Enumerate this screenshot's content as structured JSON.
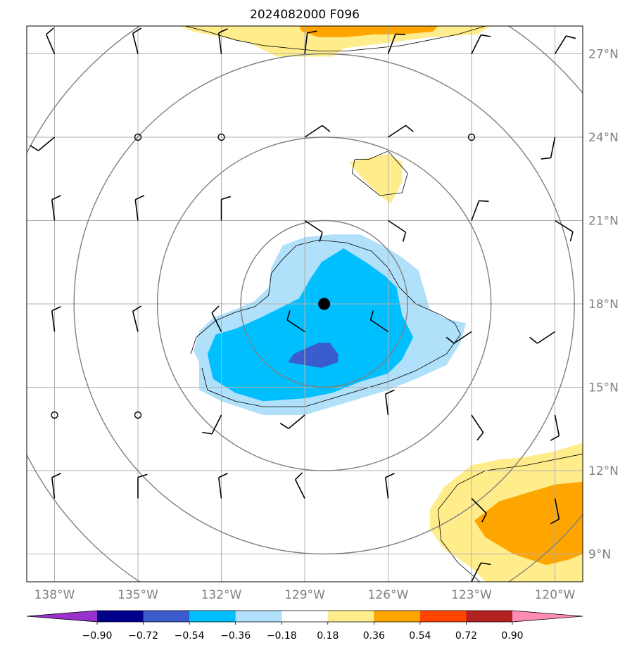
{
  "chart_data": {
    "type": "heatmap",
    "title": "2024082000 F096",
    "xlim": [
      -139.0,
      -119.0
    ],
    "ylim": [
      8.0,
      28.0
    ],
    "lon_ticks": [
      {
        "value": -138,
        "label": "138°W"
      },
      {
        "value": -135,
        "label": "135°W"
      },
      {
        "value": -132,
        "label": "132°W"
      },
      {
        "value": -129,
        "label": "129°W"
      },
      {
        "value": -126,
        "label": "126°W"
      },
      {
        "value": -123,
        "label": "123°W"
      },
      {
        "value": -120,
        "label": "120°W"
      }
    ],
    "lat_ticks": [
      {
        "value": 9,
        "label": "9°N"
      },
      {
        "value": 12,
        "label": "12°N"
      },
      {
        "value": 15,
        "label": "15°N"
      },
      {
        "value": 18,
        "label": "18°N"
      },
      {
        "value": 21,
        "label": "21°N"
      },
      {
        "value": 24,
        "label": "24°N"
      },
      {
        "value": 27,
        "label": "27°N"
      }
    ],
    "grid": true,
    "center": {
      "lon": -128.3,
      "lat": 18.0
    },
    "range_rings_deg": [
      3,
      6,
      9,
      12
    ],
    "colorbar": {
      "levels": [
        -0.9,
        -0.72,
        -0.54,
        -0.36,
        -0.18,
        0.18,
        0.36,
        0.54,
        0.72,
        0.9
      ],
      "labels": [
        "−0.90",
        "−0.72",
        "−0.54",
        "−0.36",
        "−0.18",
        "0.18",
        "0.36",
        "0.54",
        "0.72",
        "0.90"
      ],
      "colors": [
        "#9932cc",
        "#00008b",
        "#3a5ccc",
        "#00bfff",
        "#b0e0fa",
        "#ffffff",
        "#ffec8b",
        "#ffa500",
        "#ff4500",
        "#b22222",
        "#ff8cb4"
      ]
    },
    "colors": {
      "fill_0.18": "#ffec8b",
      "fill_0.36": "#ffa500",
      "fill_-0.18": "#b0e0fa",
      "fill_-0.36": "#00bfff",
      "fill_-0.54": "#3a5ccc",
      "contour": "#000000",
      "rings": "#808080",
      "grid": "#b0b0b0"
    },
    "filled_regions": [
      {
        "level": "0.18",
        "points": [
          [
            -133.5,
            28
          ],
          [
            -122.3,
            28
          ],
          [
            -122.8,
            27.7
          ],
          [
            -124.5,
            27.6
          ],
          [
            -126,
            27.4
          ],
          [
            -127.6,
            27.2
          ],
          [
            -128,
            26.9
          ],
          [
            -130,
            26.9
          ],
          [
            -131,
            27.4
          ],
          [
            -132,
            27.6
          ],
          [
            -133,
            27.8
          ]
        ]
      },
      {
        "level": "0.36",
        "points": [
          [
            -129.2,
            28
          ],
          [
            -124.2,
            28
          ],
          [
            -124.4,
            27.8
          ],
          [
            -125.5,
            27.7
          ],
          [
            -126.5,
            27.7
          ],
          [
            -127.5,
            27.6
          ],
          [
            -128.5,
            27.6
          ],
          [
            -129.1,
            27.8
          ]
        ]
      },
      {
        "level": "0.18",
        "points": [
          [
            -126.5,
            23.3
          ],
          [
            -126.0,
            23.4
          ],
          [
            -125.5,
            23.1
          ],
          [
            -125.5,
            22.4
          ],
          [
            -125.9,
            21.6
          ],
          [
            -126.3,
            21.9
          ],
          [
            -127.0,
            22.6
          ],
          [
            -127.4,
            23.1
          ]
        ]
      },
      {
        "level": "0.18",
        "points": [
          [
            -119,
            13.0
          ],
          [
            -120,
            12.7
          ],
          [
            -121,
            12.5
          ],
          [
            -122,
            12.4
          ],
          [
            -123,
            12.2
          ],
          [
            -124,
            11.4
          ],
          [
            -124.5,
            10.6
          ],
          [
            -124.5,
            9.9
          ],
          [
            -124,
            9.2
          ],
          [
            -123,
            8.5
          ],
          [
            -122.5,
            8
          ],
          [
            -119,
            8
          ]
        ]
      },
      {
        "level": "0.36",
        "points": [
          [
            -119,
            11.6
          ],
          [
            -120,
            11.5
          ],
          [
            -121,
            11.2
          ],
          [
            -122,
            10.9
          ],
          [
            -122.9,
            10.2
          ],
          [
            -122.5,
            9.6
          ],
          [
            -121.5,
            9.0
          ],
          [
            -120.3,
            8.6
          ],
          [
            -119.5,
            8.8
          ],
          [
            -119,
            9.0
          ]
        ]
      },
      {
        "level": "-0.18",
        "points": [
          [
            -132.8,
            15.9
          ],
          [
            -132.8,
            14.9
          ],
          [
            -132,
            14.5
          ],
          [
            -130.5,
            14.0
          ],
          [
            -129,
            14.0
          ],
          [
            -128,
            14.3
          ],
          [
            -127,
            14.6
          ],
          [
            -126,
            14.9
          ],
          [
            -125,
            15.3
          ],
          [
            -123.9,
            15.8
          ],
          [
            -123.4,
            16.6
          ],
          [
            -123.2,
            17.3
          ],
          [
            -124,
            17.5
          ],
          [
            -124.5,
            17.8
          ],
          [
            -124.7,
            18.5
          ],
          [
            -124.9,
            19.2
          ],
          [
            -125.4,
            19.6
          ],
          [
            -126,
            20.0
          ],
          [
            -127,
            20.5
          ],
          [
            -128,
            20.5
          ],
          [
            -129,
            20.4
          ],
          [
            -129.8,
            20.1
          ],
          [
            -130.2,
            19.3
          ],
          [
            -130.3,
            18.6
          ],
          [
            -130.8,
            18.1
          ],
          [
            -131.5,
            17.8
          ],
          [
            -132.3,
            17.5
          ],
          [
            -132.8,
            17.0
          ],
          [
            -133.0,
            16.3
          ]
        ]
      },
      {
        "level": "-0.36",
        "points": [
          [
            -132.3,
            15.3
          ],
          [
            -131.5,
            14.8
          ],
          [
            -130.5,
            14.5
          ],
          [
            -129,
            14.6
          ],
          [
            -128,
            14.8
          ],
          [
            -127,
            15.2
          ],
          [
            -126,
            15.5
          ],
          [
            -125.5,
            16.0
          ],
          [
            -125.1,
            16.8
          ],
          [
            -125.5,
            17.6
          ],
          [
            -125.7,
            18.6
          ],
          [
            -126.1,
            19.0
          ],
          [
            -126.8,
            19.5
          ],
          [
            -127.6,
            20.0
          ],
          [
            -128.4,
            19.5
          ],
          [
            -128.8,
            18.9
          ],
          [
            -129.2,
            18.2
          ],
          [
            -129.8,
            17.9
          ],
          [
            -130.6,
            17.5
          ],
          [
            -131.5,
            17.1
          ],
          [
            -132.2,
            16.9
          ],
          [
            -132.5,
            16.2
          ]
        ]
      },
      {
        "level": "-0.54",
        "points": [
          [
            -129.6,
            15.9
          ],
          [
            -128.4,
            15.7
          ],
          [
            -127.8,
            15.9
          ],
          [
            -127.8,
            16.2
          ],
          [
            -128.1,
            16.6
          ],
          [
            -128.5,
            16.6
          ],
          [
            -129.4,
            16.2
          ]
        ]
      }
    ],
    "contours": [
      {
        "points": [
          [
            -133.3,
            28
          ],
          [
            -132.5,
            27.8
          ],
          [
            -131.5,
            27.5
          ],
          [
            -130.5,
            27.3
          ],
          [
            -129.5,
            27.2
          ],
          [
            -128.5,
            27.1
          ],
          [
            -127.5,
            27.1
          ],
          [
            -126.5,
            27.2
          ],
          [
            -125.5,
            27.3
          ],
          [
            -124.5,
            27.5
          ],
          [
            -123.5,
            27.7
          ],
          [
            -122.5,
            28
          ]
        ]
      },
      {
        "points": [
          [
            -127.2,
            23.2
          ],
          [
            -126.7,
            23.2
          ],
          [
            -126.0,
            23.5
          ],
          [
            -125.3,
            22.7
          ],
          [
            -125.5,
            22.0
          ],
          [
            -126.3,
            21.9
          ],
          [
            -126.8,
            22.3
          ],
          [
            -127.3,
            22.7
          ],
          [
            -127.2,
            23.2
          ]
        ]
      },
      {
        "points": [
          [
            -119,
            12.6
          ],
          [
            -120,
            12.4
          ],
          [
            -121,
            12.2
          ],
          [
            -122.5,
            12
          ],
          [
            -123.5,
            11.5
          ],
          [
            -124.2,
            10.6
          ],
          [
            -124.1,
            9.5
          ],
          [
            -123.5,
            8.7
          ],
          [
            -122.7,
            8.0
          ]
        ]
      },
      {
        "points": [
          [
            -132.7,
            15.7
          ],
          [
            -132.5,
            14.9
          ],
          [
            -131.5,
            14.5
          ],
          [
            -130.5,
            14.3
          ],
          [
            -129,
            14.3
          ],
          [
            -128,
            14.6
          ],
          [
            -127,
            14.9
          ],
          [
            -126,
            15.2
          ],
          [
            -125,
            15.6
          ],
          [
            -123.9,
            16.2
          ],
          [
            -123.4,
            16.9
          ],
          [
            -123.6,
            17.3
          ],
          [
            -124.1,
            17.6
          ],
          [
            -125,
            18.0
          ],
          [
            -125.6,
            18.6
          ],
          [
            -126,
            19.3
          ],
          [
            -126.6,
            19.9
          ],
          [
            -127.5,
            20.2
          ],
          [
            -128.5,
            20.3
          ],
          [
            -129.3,
            20.1
          ],
          [
            -129.8,
            19.6
          ],
          [
            -130.2,
            19.1
          ],
          [
            -130.3,
            18.3
          ],
          [
            -130.8,
            17.9
          ],
          [
            -131.5,
            17.7
          ],
          [
            -132.2,
            17.4
          ],
          [
            -132.9,
            16.8
          ],
          [
            -133.1,
            16.2
          ]
        ]
      }
    ],
    "wind_barbs": [
      {
        "lon": -138,
        "lat": 27,
        "u": 3,
        "v": -7
      },
      {
        "lon": -135,
        "lat": 27,
        "u": 2,
        "v": -8
      },
      {
        "lon": -132,
        "lat": 27,
        "u": 1,
        "v": -8
      },
      {
        "lon": -129,
        "lat": 27,
        "u": -1,
        "v": -8
      },
      {
        "lon": -126,
        "lat": 27,
        "u": -3,
        "v": -8
      },
      {
        "lon": -123,
        "lat": 27,
        "u": -4,
        "v": -8
      },
      {
        "lon": -120,
        "lat": 27,
        "u": -5,
        "v": -8
      },
      {
        "lon": -138,
        "lat": 24,
        "u": 6,
        "v": 5
      },
      {
        "lon": -135,
        "lat": 24,
        "u": 0,
        "v": 0
      },
      {
        "lon": -132,
        "lat": 24,
        "u": 0,
        "v": 0
      },
      {
        "lon": -129,
        "lat": 24,
        "u": -6,
        "v": -4
      },
      {
        "lon": -126,
        "lat": 24,
        "u": -6,
        "v": -4
      },
      {
        "lon": -123,
        "lat": 24,
        "u": 0,
        "v": 0
      },
      {
        "lon": -120,
        "lat": 24,
        "u": 2,
        "v": 10
      },
      {
        "lon": -138,
        "lat": 21,
        "u": 1,
        "v": -8
      },
      {
        "lon": -135,
        "lat": 21,
        "u": 1,
        "v": -8
      },
      {
        "lon": -132,
        "lat": 21,
        "u": 0,
        "v": -8
      },
      {
        "lon": -129,
        "lat": 21,
        "u": -6,
        "v": 4
      },
      {
        "lon": -126,
        "lat": 21,
        "u": -6,
        "v": 4
      },
      {
        "lon": -123,
        "lat": 21,
        "u": -3,
        "v": -8
      },
      {
        "lon": -120,
        "lat": 21,
        "u": -8,
        "v": 5
      },
      {
        "lon": -138,
        "lat": 17,
        "u": 1,
        "v": -8
      },
      {
        "lon": -135,
        "lat": 17,
        "u": 2,
        "v": -8
      },
      {
        "lon": -132,
        "lat": 17,
        "u": 4,
        "v": -8
      },
      {
        "lon": -129,
        "lat": 17,
        "u": 6,
        "v": -4
      },
      {
        "lon": -126,
        "lat": 17,
        "u": 6,
        "v": -4
      },
      {
        "lon": -123,
        "lat": 17,
        "u": 6,
        "v": 4
      },
      {
        "lon": -120,
        "lat": 17,
        "u": 6,
        "v": 4
      },
      {
        "lon": -138,
        "lat": 14,
        "u": 0,
        "v": 0
      },
      {
        "lon": -135,
        "lat": 14,
        "u": 0,
        "v": 0
      },
      {
        "lon": -132,
        "lat": 14,
        "u": 3,
        "v": 6
      },
      {
        "lon": -129,
        "lat": 14,
        "u": 6,
        "v": 5
      },
      {
        "lon": -126,
        "lat": 14,
        "u": 1,
        "v": -8
      },
      {
        "lon": -123,
        "lat": 14,
        "u": -4,
        "v": 6
      },
      {
        "lon": -120,
        "lat": 14,
        "u": -2,
        "v": 10
      },
      {
        "lon": -138,
        "lat": 11,
        "u": 1,
        "v": -8
      },
      {
        "lon": -135,
        "lat": 11,
        "u": 0,
        "v": -8
      },
      {
        "lon": -132,
        "lat": 11,
        "u": 1,
        "v": -8
      },
      {
        "lon": -129,
        "lat": 11,
        "u": 4,
        "v": -8
      },
      {
        "lon": -126,
        "lat": 11,
        "u": 1,
        "v": -8
      },
      {
        "lon": -123,
        "lat": 11,
        "u": -5,
        "v": 5
      },
      {
        "lon": -120,
        "lat": 11,
        "u": -2,
        "v": 10
      },
      {
        "lon": -123,
        "lat": 8,
        "u": -4,
        "v": -8
      }
    ]
  }
}
